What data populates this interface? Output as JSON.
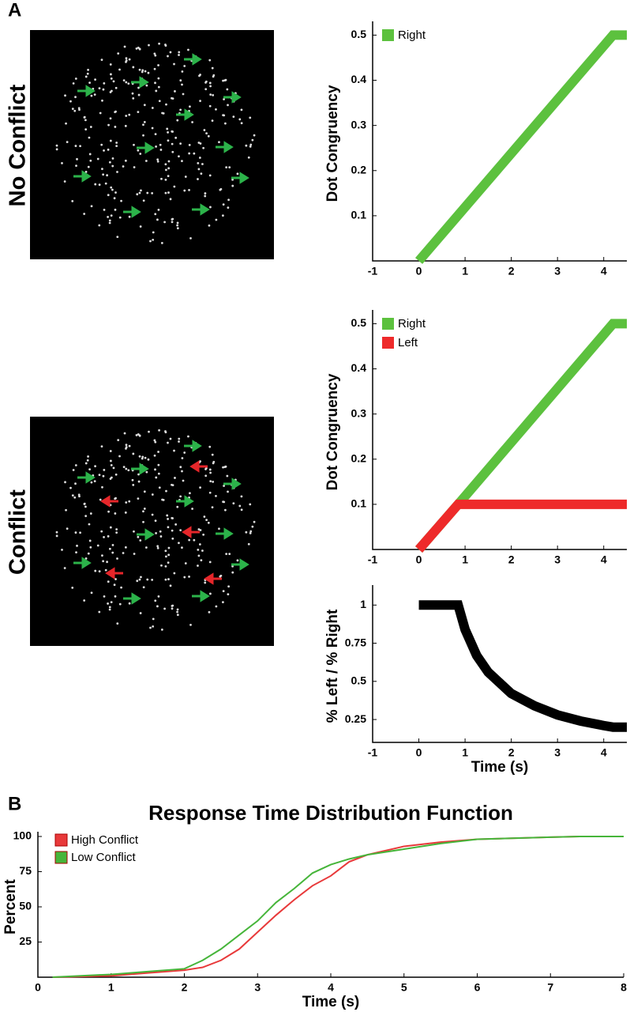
{
  "panels": [
    "A",
    "B"
  ],
  "rows": [
    "No Conflict",
    "Conflict"
  ],
  "chart_data": [
    {
      "type": "line",
      "ylabel": "Dot Congruency",
      "x": [
        0,
        4.2,
        4.5
      ],
      "series": [
        {
          "name": "Right",
          "color": "#5cc13e",
          "values": [
            0,
            0.5,
            0.5
          ]
        }
      ],
      "xlim": [
        -1,
        4.5
      ],
      "xticks": [
        -1,
        0,
        1,
        2,
        3,
        4
      ],
      "ylim": [
        0,
        0.52
      ],
      "yticks": [
        0.1,
        0.2,
        0.3,
        0.4,
        0.5
      ],
      "legend": "upper left"
    },
    {
      "type": "line",
      "ylabel": "Dot Congruency",
      "x": [
        0,
        0.85,
        4.2,
        4.5
      ],
      "series": [
        {
          "name": "Right",
          "color": "#5cc13e",
          "values": [
            0,
            0.1,
            0.5,
            0.5
          ]
        },
        {
          "name": "Left",
          "color": "#ee2a2a",
          "values": [
            0,
            0.1,
            0.1,
            0.1
          ]
        }
      ],
      "xlim": [
        -1,
        4.5
      ],
      "xticks": [
        -1,
        0,
        1,
        2,
        3,
        4
      ],
      "ylim": [
        0,
        0.52
      ],
      "yticks": [
        0.1,
        0.2,
        0.3,
        0.4,
        0.5
      ],
      "legend": "upper left"
    },
    {
      "type": "line",
      "ylabel": "% Left / % Right",
      "xlabel": "Time (s)",
      "x": [
        0,
        0.85,
        1,
        1.25,
        1.5,
        2,
        2.5,
        3,
        3.5,
        4,
        4.2,
        4.5
      ],
      "series": [
        {
          "color": "#000000",
          "values": [
            1,
            1,
            0.84,
            0.67,
            0.56,
            0.42,
            0.34,
            0.28,
            0.24,
            0.21,
            0.2,
            0.2
          ]
        }
      ],
      "xlim": [
        -1,
        4.5
      ],
      "xticks": [
        -1,
        0,
        1,
        2,
        3,
        4
      ],
      "ylim": [
        0.1,
        1.1
      ],
      "yticks": [
        0.25,
        0.5,
        0.75,
        1
      ]
    },
    {
      "type": "line",
      "title": "Response Time Distribution Function",
      "ylabel": "Percent",
      "xlabel": "Time (s)",
      "x": [
        0.2,
        1,
        1.5,
        2,
        2.25,
        2.5,
        2.75,
        3,
        3.25,
        3.5,
        3.75,
        4,
        4.25,
        4.5,
        5,
        5.5,
        6,
        7,
        7.4,
        8
      ],
      "series": [
        {
          "name": "High Conflict",
          "color": "#e8393a",
          "values": [
            0,
            1,
            3,
            5,
            7,
            12,
            20,
            32,
            44,
            55,
            65,
            72,
            82,
            87,
            93,
            96,
            98,
            99.5,
            100,
            null
          ]
        },
        {
          "name": "Low Conflict",
          "color": "#46b53a",
          "values": [
            0,
            2,
            4,
            6,
            12,
            20,
            30,
            40,
            53,
            63,
            74,
            80,
            84,
            87,
            91,
            95,
            98,
            99.5,
            100,
            100
          ]
        }
      ],
      "xlim": [
        0,
        8
      ],
      "xticks": [
        0,
        1,
        2,
        3,
        4,
        5,
        6,
        7,
        8
      ],
      "ylim": [
        0,
        100
      ],
      "yticks": [
        25,
        50,
        75,
        100
      ],
      "legend": "upper left"
    }
  ]
}
